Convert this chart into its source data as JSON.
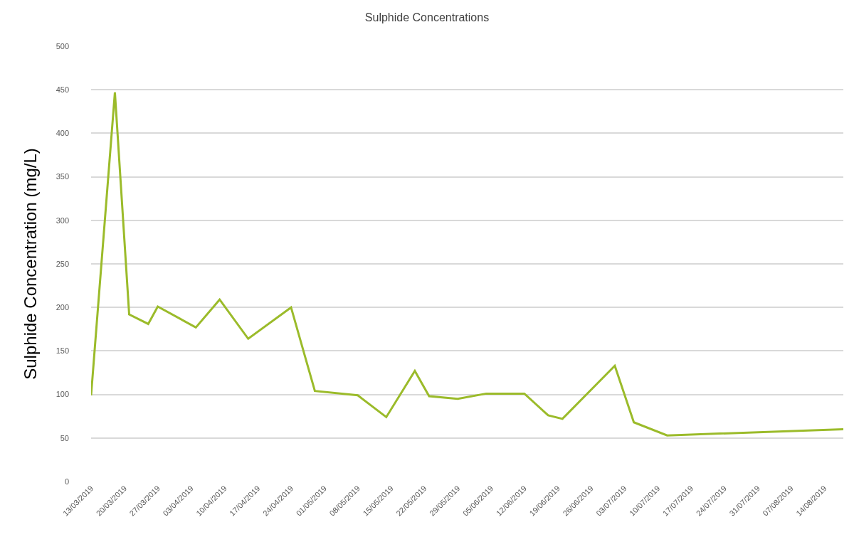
{
  "chart_data": {
    "type": "line",
    "title": "Sulphide Concentrations",
    "ylabel": "Sulphide Concentration (mg/L)",
    "x": [
      "2019-03-13",
      "2019-03-18",
      "2019-03-21",
      "2019-03-25",
      "2019-03-27",
      "2019-04-04",
      "2019-04-09",
      "2019-04-15",
      "2019-04-24",
      "2019-04-29",
      "2019-05-08",
      "2019-05-14",
      "2019-05-20",
      "2019-05-23",
      "2019-05-29",
      "2019-06-04",
      "2019-06-12",
      "2019-06-17",
      "2019-06-20",
      "2019-07-01",
      "2019-07-05",
      "2019-07-12",
      "2019-08-18"
    ],
    "series": [
      {
        "color": "#9bbb2a",
        "values": [
          99,
          447,
          192,
          181,
          201,
          177,
          209,
          164,
          200,
          104,
          99,
          74,
          127,
          98,
          95,
          101,
          101,
          76,
          72,
          133,
          68,
          53,
          60
        ]
      }
    ],
    "xlim": [
      "2019-03-13",
      "2019-08-18"
    ],
    "xticks": [
      {
        "value": "2019-03-13",
        "label": "13/03/2019"
      },
      {
        "value": "2019-03-20",
        "label": "20/03/2019"
      },
      {
        "value": "2019-03-27",
        "label": "27/03/2019"
      },
      {
        "value": "2019-04-03",
        "label": "03/04/2019"
      },
      {
        "value": "2019-04-10",
        "label": "10/04/2019"
      },
      {
        "value": "2019-04-17",
        "label": "17/04/2019"
      },
      {
        "value": "2019-04-24",
        "label": "24/04/2019"
      },
      {
        "value": "2019-05-01",
        "label": "01/05/2019"
      },
      {
        "value": "2019-05-08",
        "label": "08/05/2019"
      },
      {
        "value": "2019-05-15",
        "label": "15/05/2019"
      },
      {
        "value": "2019-05-22",
        "label": "22/05/2019"
      },
      {
        "value": "2019-05-29",
        "label": "29/05/2019"
      },
      {
        "value": "2019-06-05",
        "label": "05/06/2019"
      },
      {
        "value": "2019-06-12",
        "label": "12/06/2019"
      },
      {
        "value": "2019-06-19",
        "label": "19/06/2019"
      },
      {
        "value": "2019-06-26",
        "label": "26/06/2019"
      },
      {
        "value": "2019-07-03",
        "label": "03/07/2019"
      },
      {
        "value": "2019-07-10",
        "label": "10/07/2019"
      },
      {
        "value": "2019-07-17",
        "label": "17/07/2019"
      },
      {
        "value": "2019-07-24",
        "label": "24/07/2019"
      },
      {
        "value": "2019-07-31",
        "label": "31/07/2019"
      },
      {
        "value": "2019-08-07",
        "label": "07/08/2019"
      },
      {
        "value": "2019-08-14",
        "label": "14/08/2019"
      }
    ],
    "ylim": [
      0,
      500
    ],
    "yticks": [
      0,
      50,
      100,
      150,
      200,
      250,
      300,
      350,
      400,
      450,
      500
    ],
    "grid": "y",
    "marker": "none",
    "line_style": "solid"
  }
}
